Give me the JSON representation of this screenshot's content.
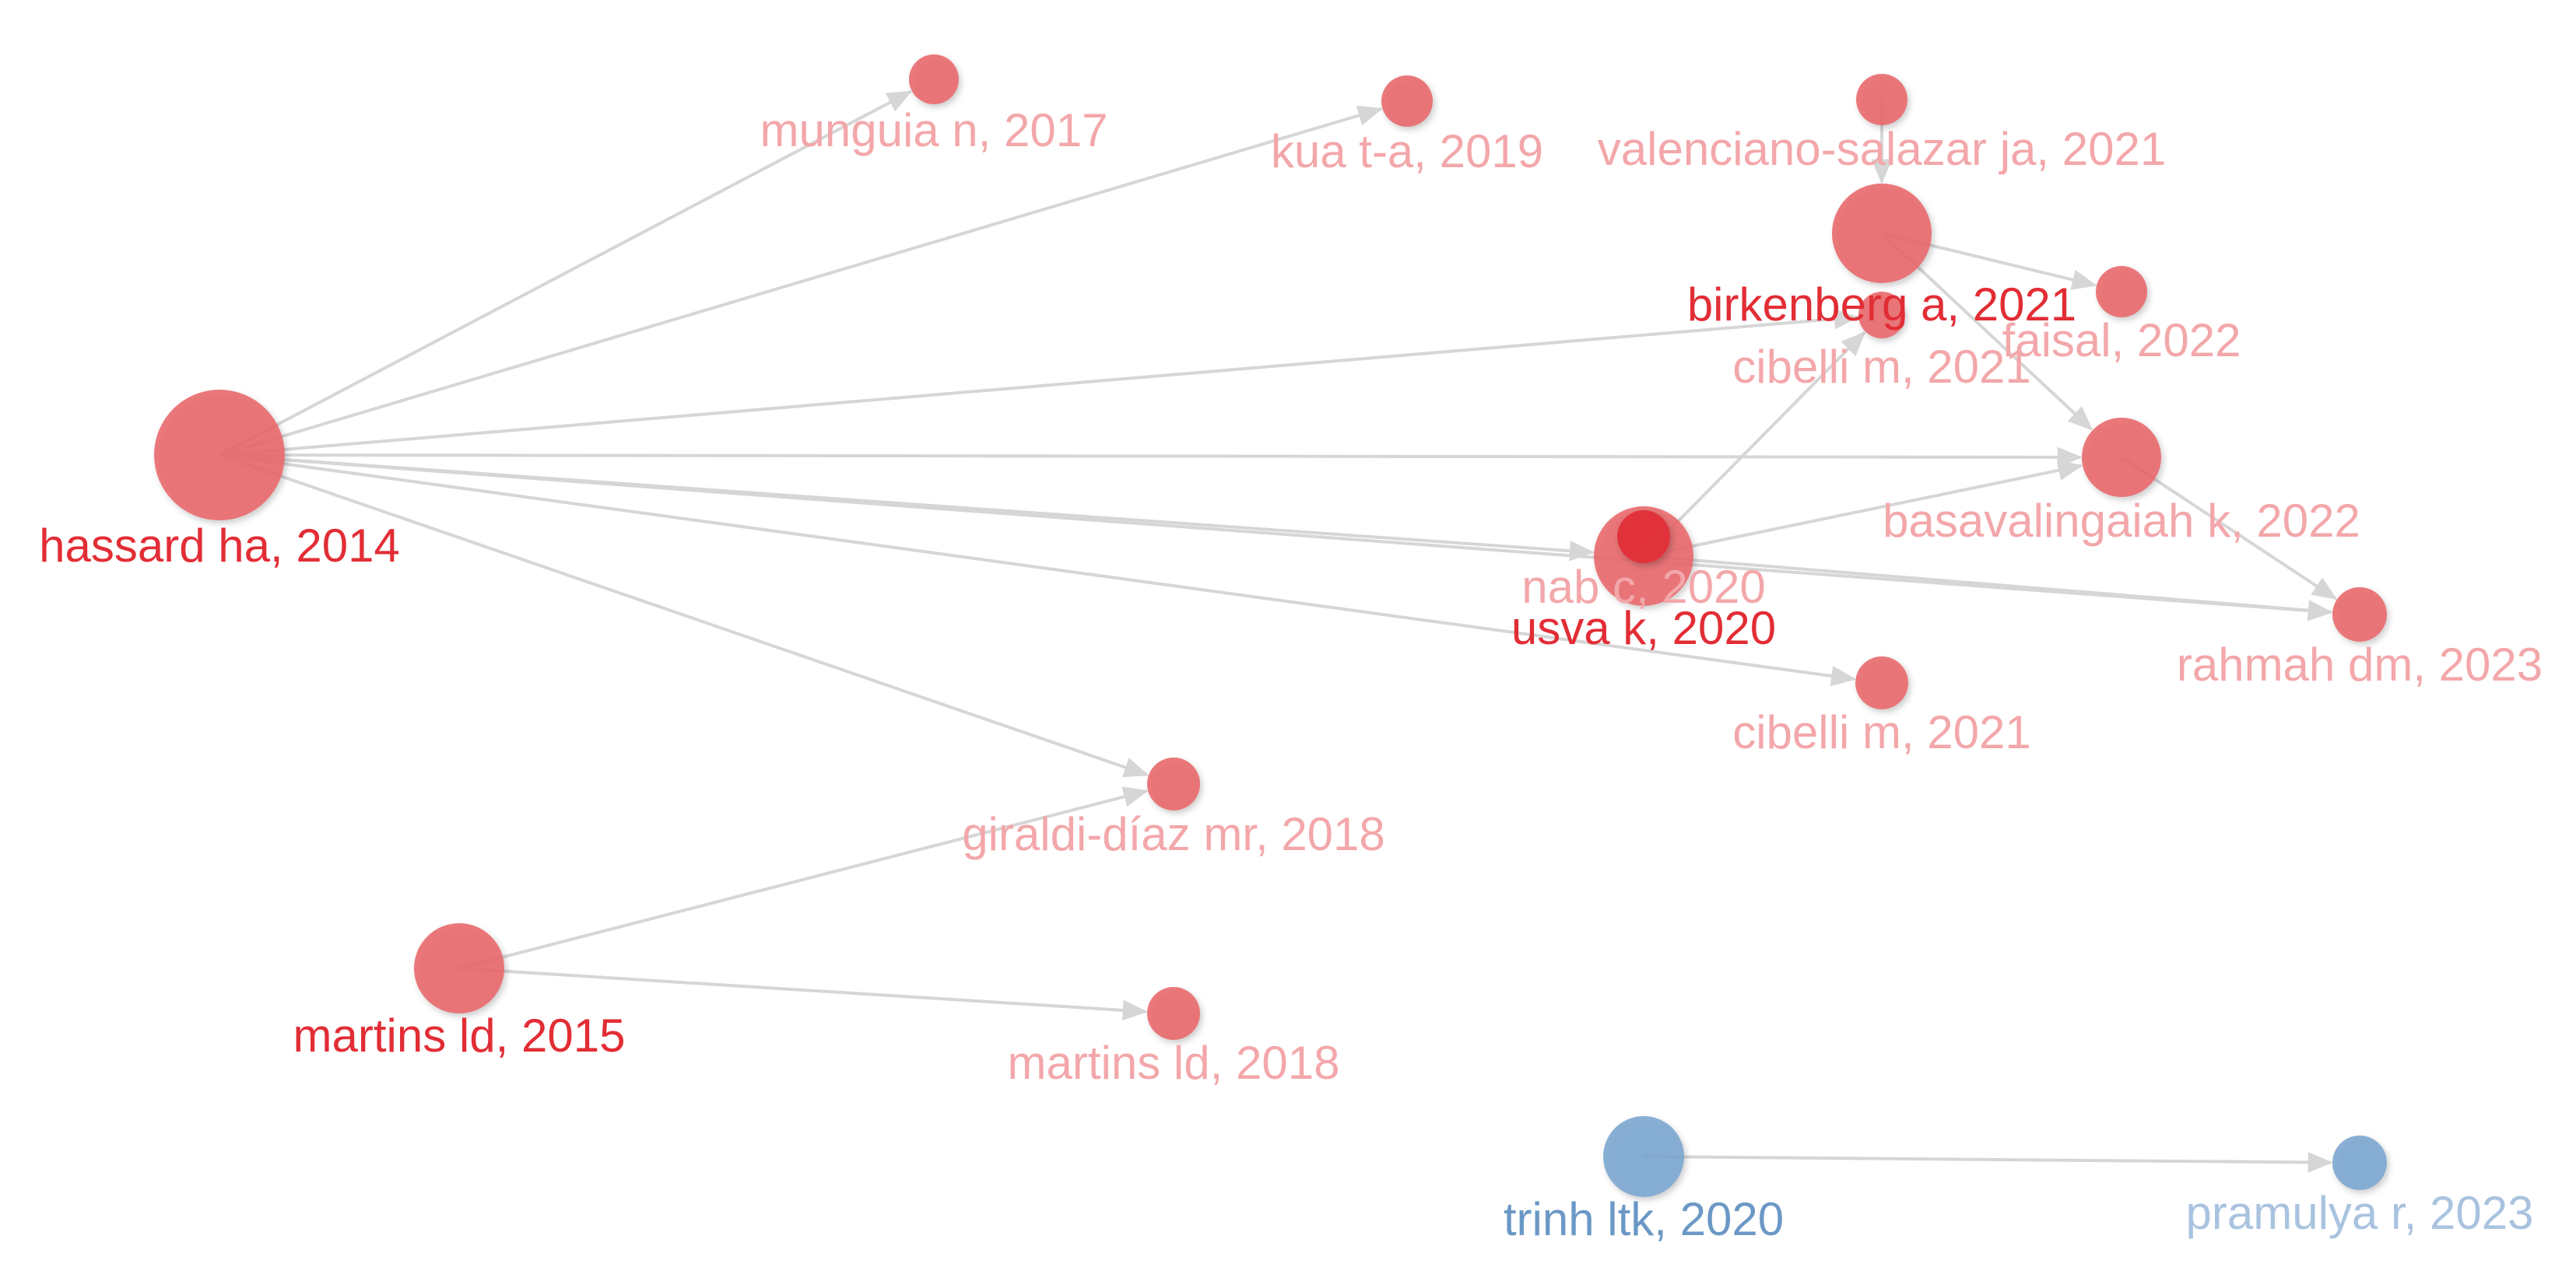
{
  "colors": {
    "red_cluster": "#e8666a",
    "red_cluster_dark": "#e1303a",
    "blue_cluster": "#7aa5cf",
    "label_primary_red": "#e22d35",
    "label_faded_red": "#f3a7aa",
    "label_primary_blue": "#6b98c6",
    "label_faded_blue": "#a9c3df",
    "edge": "#d6d6d6"
  },
  "nodes": [
    {
      "id": "hassard",
      "label": "hassard ha, 2014",
      "cluster": "red",
      "emphasis": "primary"
    },
    {
      "id": "munguia",
      "label": "munguia n, 2017",
      "cluster": "red",
      "emphasis": "faded"
    },
    {
      "id": "kua",
      "label": "kua t-a, 2019",
      "cluster": "red",
      "emphasis": "faded"
    },
    {
      "id": "valenciano",
      "label": "valenciano-salazar ja, 2021",
      "cluster": "red",
      "emphasis": "faded"
    },
    {
      "id": "birkenberg",
      "label": "birkenberg a, 2021",
      "cluster": "red",
      "emphasis": "primary"
    },
    {
      "id": "faisal",
      "label": "faisal, 2022",
      "cluster": "red",
      "emphasis": "faded"
    },
    {
      "id": "cibelli_top",
      "label": "cibelli m, 2021",
      "cluster": "red",
      "emphasis": "faded"
    },
    {
      "id": "basavalingaiah",
      "label": "basavalingaiah k, 2022",
      "cluster": "red",
      "emphasis": "faded"
    },
    {
      "id": "nab",
      "label": "nab c, 2020",
      "cluster": "red",
      "emphasis": "faded"
    },
    {
      "id": "usva",
      "label": "usva k, 2020",
      "cluster": "red",
      "emphasis": "primary"
    },
    {
      "id": "rahmah",
      "label": "rahmah dm, 2023",
      "cluster": "red",
      "emphasis": "faded"
    },
    {
      "id": "cibelli_bottom",
      "label": "cibelli m, 2021",
      "cluster": "red",
      "emphasis": "faded"
    },
    {
      "id": "giraldi",
      "label": "giraldi-díaz mr, 2018",
      "cluster": "red",
      "emphasis": "faded"
    },
    {
      "id": "martins2015",
      "label": "martins ld, 2015",
      "cluster": "red",
      "emphasis": "primary"
    },
    {
      "id": "martins2018",
      "label": "martins ld, 2018",
      "cluster": "red",
      "emphasis": "faded"
    },
    {
      "id": "trinh",
      "label": "trinh ltk, 2020",
      "cluster": "blue",
      "emphasis": "primary"
    },
    {
      "id": "pramulya",
      "label": "pramulya r, 2023",
      "cluster": "blue",
      "emphasis": "faded"
    }
  ],
  "edges": [
    {
      "source": "hassard",
      "target": "munguia"
    },
    {
      "source": "hassard",
      "target": "kua"
    },
    {
      "source": "hassard",
      "target": "cibelli_top"
    },
    {
      "source": "hassard",
      "target": "basavalingaiah"
    },
    {
      "source": "hassard",
      "target": "nab"
    },
    {
      "source": "hassard",
      "target": "rahmah"
    },
    {
      "source": "hassard",
      "target": "cibelli_bottom"
    },
    {
      "source": "hassard",
      "target": "giraldi"
    },
    {
      "source": "valenciano",
      "target": "birkenberg"
    },
    {
      "source": "birkenberg",
      "target": "faisal"
    },
    {
      "source": "birkenberg",
      "target": "basavalingaiah"
    },
    {
      "source": "basavalingaiah",
      "target": "rahmah"
    },
    {
      "source": "nab",
      "target": "cibelli_top"
    },
    {
      "source": "nab",
      "target": "basavalingaiah"
    },
    {
      "source": "nab",
      "target": "rahmah"
    },
    {
      "source": "martins2015",
      "target": "giraldi"
    },
    {
      "source": "martins2015",
      "target": "martins2018"
    },
    {
      "source": "trinh",
      "target": "pramulya"
    }
  ]
}
